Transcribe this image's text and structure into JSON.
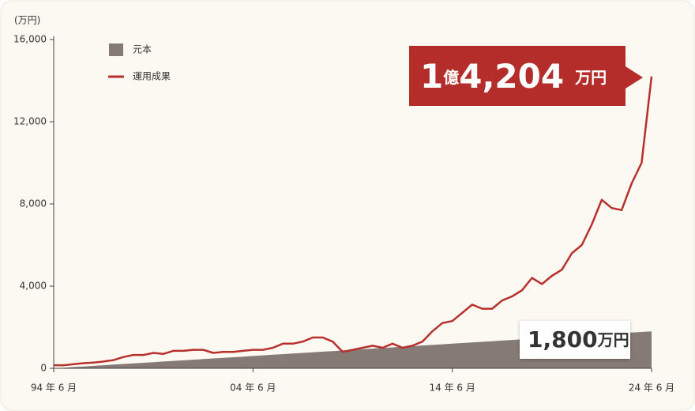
{
  "chart_data": {
    "type": "line",
    "y_unit_label": "(万円)",
    "categories": [
      "94 年 6 月",
      null,
      null,
      null,
      null,
      null,
      null,
      null,
      null,
      null,
      null,
      null,
      null,
      null,
      null,
      null,
      null,
      null,
      null,
      null,
      "04 年 6 月",
      null,
      null,
      null,
      null,
      null,
      null,
      null,
      null,
      null,
      null,
      null,
      null,
      null,
      null,
      null,
      null,
      null,
      null,
      null,
      "14 年 6 月",
      null,
      null,
      null,
      null,
      null,
      null,
      null,
      null,
      null,
      null,
      null,
      null,
      null,
      null,
      null,
      null,
      null,
      null,
      null,
      "24 年 6 月"
    ],
    "series": [
      {
        "name": "元本",
        "color": "#857a74",
        "style": "area",
        "values": [
          5,
          30,
          60,
          90,
          120,
          150,
          180,
          210,
          240,
          270,
          300,
          330,
          360,
          390,
          420,
          450,
          480,
          510,
          540,
          570,
          600,
          630,
          660,
          690,
          720,
          750,
          780,
          810,
          840,
          870,
          900,
          930,
          960,
          990,
          1020,
          1050,
          1080,
          1110,
          1140,
          1170,
          1200,
          1230,
          1260,
          1290,
          1320,
          1350,
          1380,
          1410,
          1440,
          1470,
          1500,
          1530,
          1560,
          1590,
          1620,
          1650,
          1680,
          1710,
          1740,
          1770,
          1800
        ]
      },
      {
        "name": "運用成果",
        "color": "#b8302c",
        "style": "line",
        "values": [
          150,
          150,
          200,
          250,
          280,
          330,
          400,
          550,
          650,
          650,
          750,
          700,
          850,
          850,
          900,
          900,
          750,
          800,
          800,
          850,
          900,
          900,
          1000,
          1200,
          1200,
          1300,
          1500,
          1500,
          1300,
          800,
          900,
          1000,
          1100,
          1000,
          1200,
          1000,
          1100,
          1300,
          1800,
          2200,
          2300,
          2700,
          3100,
          2900,
          2900,
          3300,
          3500,
          3800,
          4400,
          4100,
          4500,
          4800,
          5600,
          6000,
          7000,
          8200,
          7800,
          7700,
          9000,
          10000,
          14204
        ]
      }
    ],
    "ylim": [
      0,
      16000
    ],
    "yticks": [
      0,
      {
        "value": 4000,
        "label": "4,000"
      },
      {
        "value": 8000,
        "label": "8,000"
      },
      {
        "value": 12000,
        "label": "12,000"
      },
      {
        "value": 16000,
        "label": "16,000"
      }
    ],
    "grid": false,
    "legend": "top-left",
    "annotations": {
      "final_result": [
        "1",
        "億",
        "4,204",
        "万円"
      ],
      "principal_total": [
        "1,800",
        "万円"
      ]
    }
  }
}
